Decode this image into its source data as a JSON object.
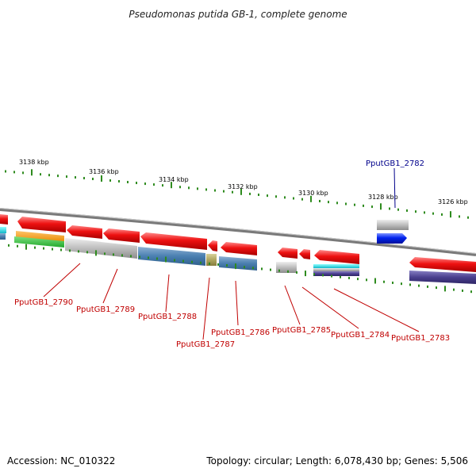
{
  "title": "Pseudomonas putida GB-1, complete genome",
  "scale_labels": [
    "3138 kbp",
    "3136 kbp",
    "3134 kbp",
    "3132 kbp",
    "3130 kbp",
    "3128 kbp",
    "3126 kbp"
  ],
  "gene_labels_forward": [
    "PputGB1_2782"
  ],
  "gene_labels_reverse": [
    "PputGB1_2790",
    "PputGB1_2789",
    "PputGB1_2788",
    "PputGB1_2787",
    "PputGB1_2786",
    "PputGB1_2785",
    "PputGB1_2784",
    "PputGB1_2783"
  ],
  "colors": {
    "reverse_gene": "#ee1111",
    "forward_gene": "#0022ee",
    "reverse_label": "#c00000",
    "forward_label": "#00008b",
    "tick": "#2e8b1e",
    "backbone": "#888888"
  },
  "footer": {
    "accession": "Accession: NC_010322",
    "topology": "Topology: circular; Length: 6,078,430 bp; Genes: 5,506"
  }
}
